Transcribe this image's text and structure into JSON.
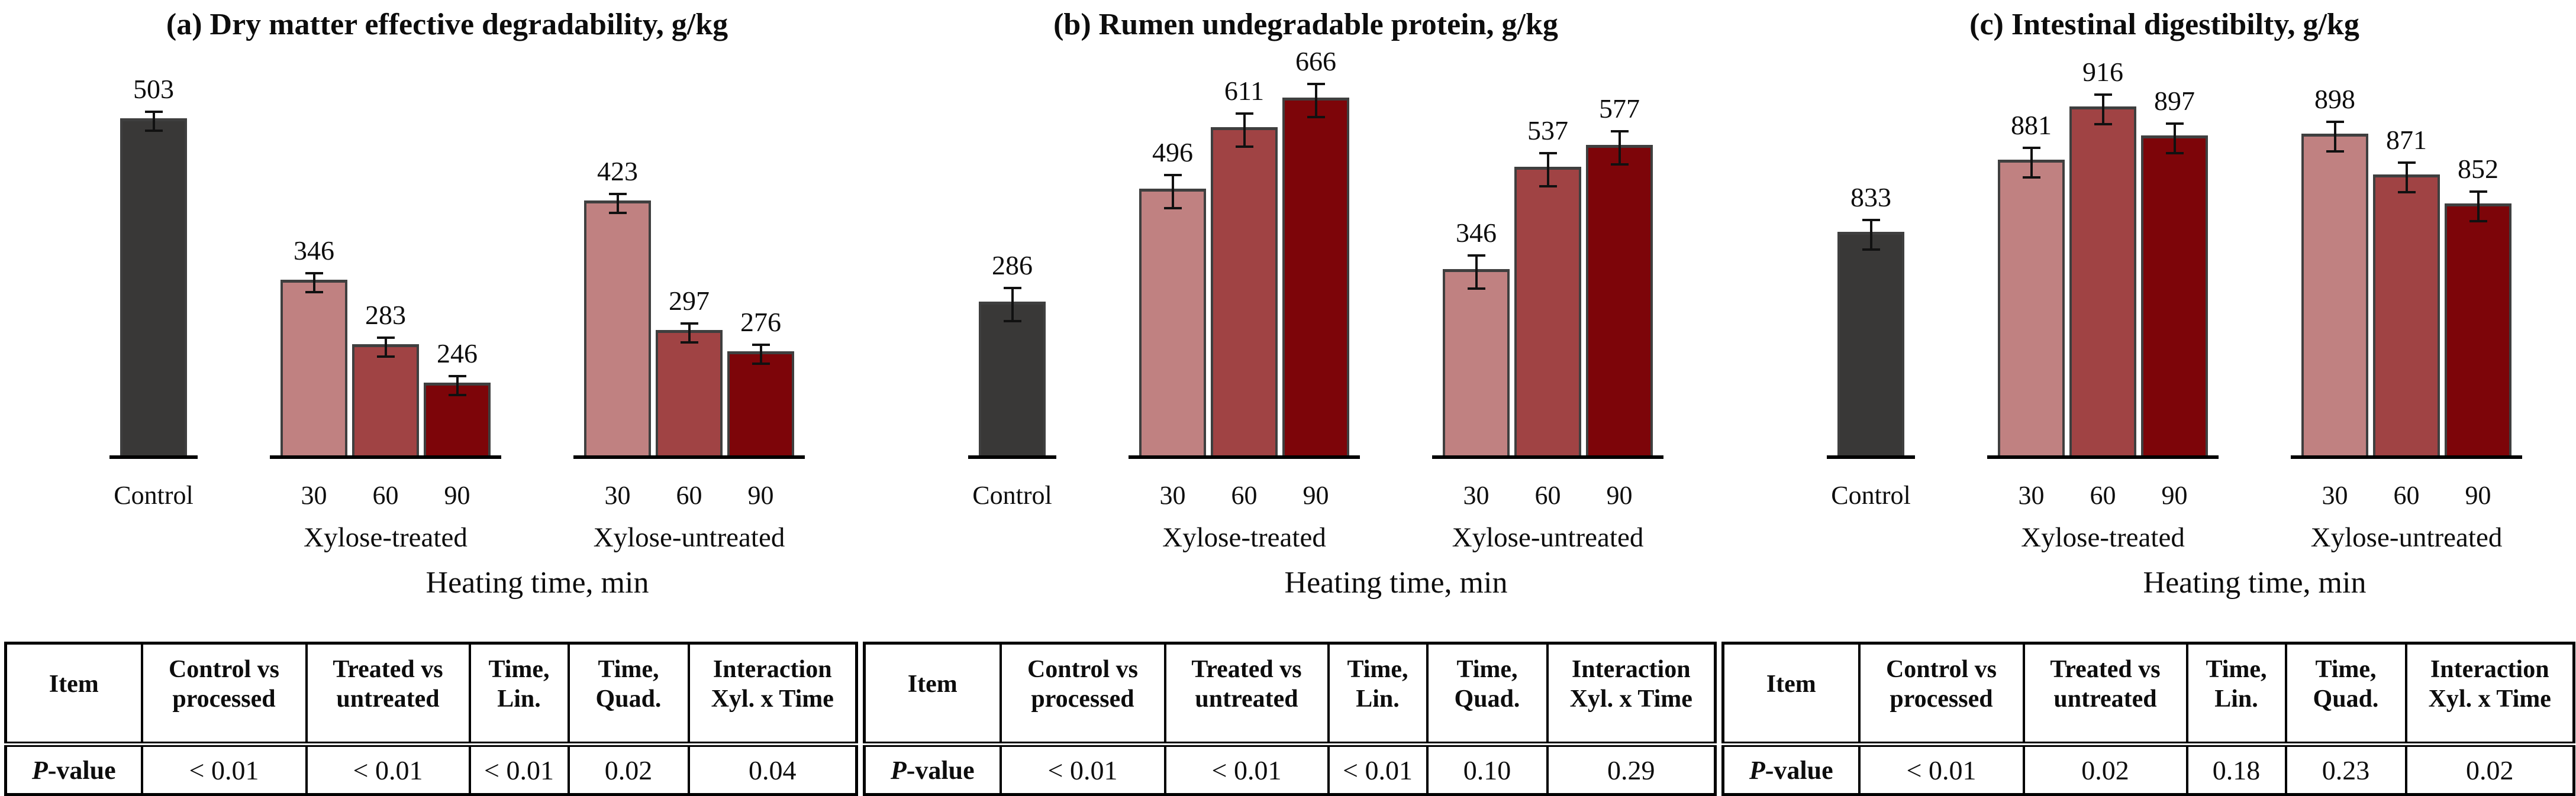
{
  "colors": {
    "control_bar": "#393837",
    "bar_30": "#c08181",
    "bar_60": "#a04344",
    "bar_90": "#7d0509",
    "bar_outline": "#3f3f3f",
    "error_bar": "#111111",
    "baseline": "#000000",
    "table_border": "#000000"
  },
  "chart_data": [
    {
      "type": "bar",
      "panel_tag": "(a)",
      "title": "Dry matter effective degradability, g/kg",
      "xlabel": "Heating time, min",
      "ylim": [
        175,
        520
      ],
      "grid": false,
      "groups": [
        {
          "label": "",
          "ticks": [
            "Control"
          ],
          "values": [
            503
          ],
          "colors": [
            "control_bar"
          ]
        },
        {
          "label": "Xylose-treated",
          "ticks": [
            "30",
            "60",
            "90"
          ],
          "values": [
            346,
            283,
            246
          ],
          "colors": [
            "bar_30",
            "bar_60",
            "bar_90"
          ]
        },
        {
          "label": "Xylose-untreated",
          "ticks": [
            "30",
            "60",
            "90"
          ],
          "values": [
            423,
            297,
            276
          ],
          "colors": [
            "bar_30",
            "bar_60",
            "bar_90"
          ]
        }
      ],
      "stats_table": {
        "headers": [
          "Item",
          "Control vs processed",
          "Treated vs untreated",
          "Time, Lin.",
          "Time, Quad.",
          "Interaction Xyl. x Time"
        ],
        "row": {
          "label_italic": "P",
          "label_rest": "-value",
          "values": [
            "< 0.01",
            "< 0.01",
            "< 0.01",
            "0.02",
            "0.04"
          ]
        }
      }
    },
    {
      "type": "bar",
      "panel_tag": "(b)",
      "title": "Rumen undegradable protein, g/kg",
      "xlabel": "Heating time, min",
      "ylim": [
        0,
        660
      ],
      "grid": false,
      "groups": [
        {
          "label": "",
          "ticks": [
            "Control"
          ],
          "values": [
            286
          ],
          "colors": [
            "control_bar"
          ]
        },
        {
          "label": "Xylose-treated",
          "ticks": [
            "30",
            "60",
            "90"
          ],
          "values": [
            496,
            611,
            666
          ],
          "colors": [
            "bar_30",
            "bar_60",
            "bar_90"
          ]
        },
        {
          "label": "Xylose-untreated",
          "ticks": [
            "30",
            "60",
            "90"
          ],
          "values": [
            346,
            537,
            577
          ],
          "colors": [
            "bar_30",
            "bar_60",
            "bar_90"
          ]
        }
      ],
      "stats_table": {
        "headers": [
          "Item",
          "Control vs processed",
          "Treated vs untreated",
          "Time, Lin.",
          "Time, Quad.",
          "Interaction Xyl. x Time"
        ],
        "row": {
          "label_italic": "P",
          "label_rest": "-value",
          "values": [
            "< 0.01",
            "< 0.01",
            "< 0.01",
            "0.10",
            "0.29"
          ]
        }
      }
    },
    {
      "type": "bar",
      "panel_tag": "(c)",
      "title": "Intestinal digestibilty, g/kg",
      "xlabel": "Heating time, min",
      "ylim": [
        685,
        920
      ],
      "grid": false,
      "groups": [
        {
          "label": "",
          "ticks": [
            "Control"
          ],
          "values": [
            833
          ],
          "colors": [
            "control_bar"
          ]
        },
        {
          "label": "Xylose-treated",
          "ticks": [
            "30",
            "60",
            "90"
          ],
          "values": [
            881,
            916,
            897
          ],
          "colors": [
            "bar_30",
            "bar_60",
            "bar_90"
          ]
        },
        {
          "label": "Xylose-untreated",
          "ticks": [
            "30",
            "60",
            "90"
          ],
          "values": [
            898,
            871,
            852
          ],
          "colors": [
            "bar_30",
            "bar_60",
            "bar_90"
          ]
        }
      ],
      "stats_table": {
        "headers": [
          "Item",
          "Control vs processed",
          "Treated vs untreated",
          "Time, Lin.",
          "Time, Quad.",
          "Interaction Xyl. x Time"
        ],
        "row": {
          "label_italic": "P",
          "label_rest": "-value",
          "values": [
            "< 0.01",
            "0.02",
            "0.18",
            "0.23",
            "0.02"
          ]
        }
      }
    }
  ]
}
